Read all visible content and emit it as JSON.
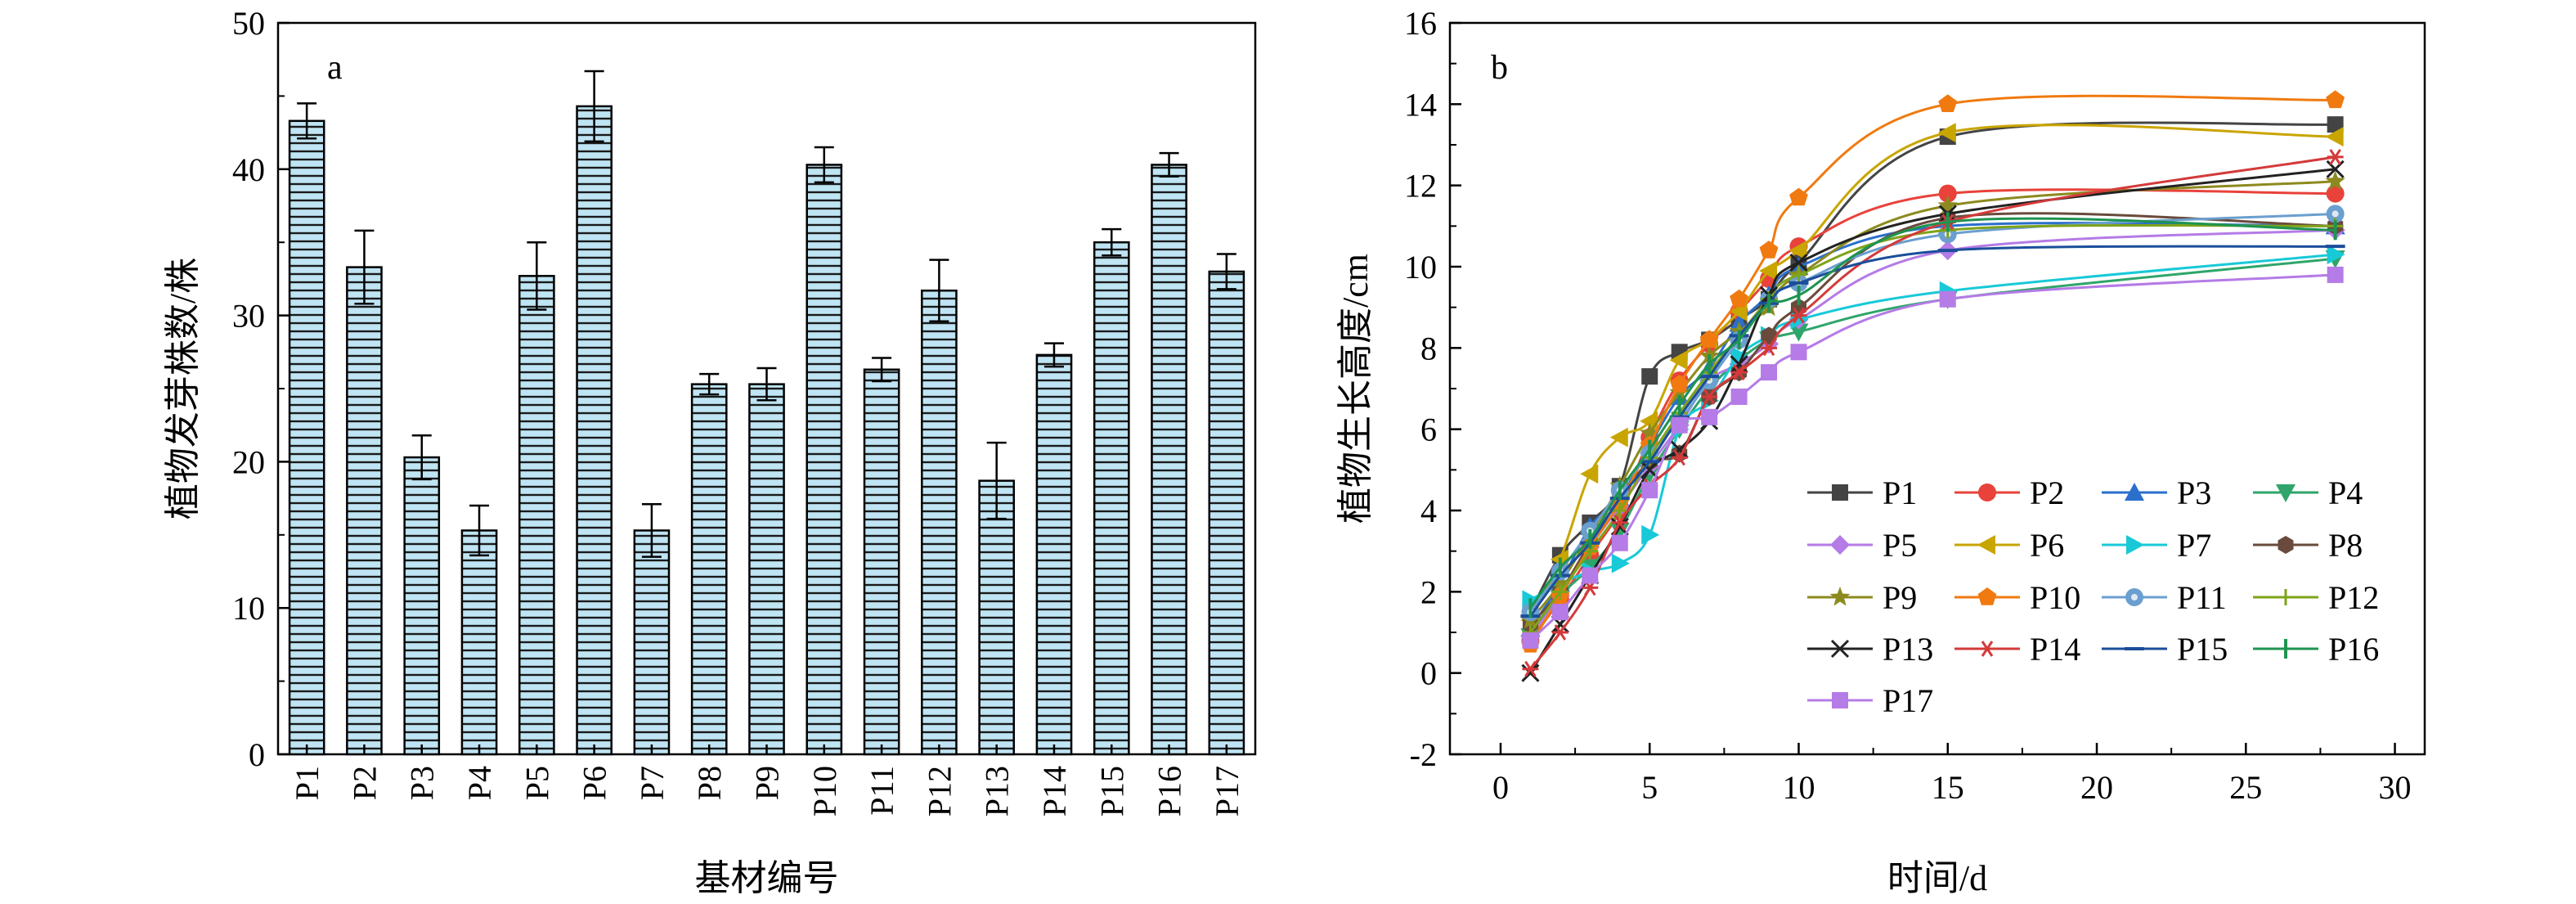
{
  "chart_data": [
    {
      "type": "bar",
      "panel_label": "a",
      "xlabel": "基材编号",
      "ylabel": "植物发芽株数/株",
      "ylim": [
        0,
        50
      ],
      "yticks": [
        0,
        10,
        20,
        30,
        40,
        50
      ],
      "bar_color": "#BFE4F3",
      "bar_hatch": "horizontal",
      "categories": [
        "P1",
        "P2",
        "P3",
        "P4",
        "P5",
        "P6",
        "P7",
        "P8",
        "P9",
        "P10",
        "P11",
        "P12",
        "P13",
        "P14",
        "P15",
        "P16",
        "P17"
      ],
      "values": [
        43.3,
        33.3,
        20.3,
        15.3,
        32.7,
        44.3,
        15.3,
        25.3,
        25.3,
        40.3,
        26.3,
        31.7,
        18.7,
        27.3,
        35.0,
        40.3,
        33.0
      ],
      "errors": [
        1.2,
        2.5,
        1.5,
        1.7,
        2.3,
        2.4,
        1.8,
        0.7,
        1.1,
        1.2,
        0.8,
        2.1,
        2.6,
        0.8,
        0.9,
        0.8,
        1.2
      ]
    },
    {
      "type": "line",
      "panel_label": "b",
      "xlabel": "时间/d",
      "ylabel": "植物生长高度/cm",
      "xlim": [
        -1.7,
        31
      ],
      "ylim": [
        -2,
        16
      ],
      "xticks": [
        0,
        5,
        10,
        15,
        20,
        25,
        30
      ],
      "yticks": [
        -2,
        0,
        2,
        4,
        6,
        8,
        10,
        12,
        14,
        16
      ],
      "legend_position": "bottom-right",
      "x": [
        1,
        2,
        3,
        4,
        5,
        6,
        7,
        8,
        9,
        10,
        15,
        28
      ],
      "series": [
        {
          "name": "P1",
          "color": "#444444",
          "marker": "square",
          "values": [
            1.5,
            2.9,
            3.7,
            4.6,
            7.3,
            7.9,
            8.2,
            8.7,
            9.2,
            10.1,
            13.2,
            13.5
          ]
        },
        {
          "name": "P2",
          "color": "#E8423B",
          "marker": "circle",
          "values": [
            0.8,
            1.8,
            2.9,
            4.0,
            5.8,
            7.2,
            8.1,
            8.9,
            9.7,
            10.5,
            11.8,
            11.8
          ]
        },
        {
          "name": "P3",
          "color": "#2A6FCC",
          "marker": "triangle-up",
          "values": [
            1.1,
            2.2,
            3.6,
            4.3,
            5.6,
            6.8,
            7.5,
            8.6,
            9.3,
            10.0,
            11.0,
            11.0
          ]
        },
        {
          "name": "P4",
          "color": "#2FA56B",
          "marker": "triangle-down",
          "values": [
            0.9,
            1.9,
            2.6,
            3.5,
            4.9,
            6.0,
            7.0,
            7.7,
            8.2,
            8.4,
            9.2,
            10.2
          ]
        },
        {
          "name": "P5",
          "color": "#B57BE6",
          "marker": "diamond",
          "values": [
            0.9,
            1.9,
            3.1,
            4.1,
            5.1,
            6.1,
            7.2,
            7.6,
            8.1,
            8.7,
            10.4,
            10.9
          ]
        },
        {
          "name": "P6",
          "color": "#C9A500",
          "marker": "triangle-left",
          "values": [
            1.3,
            2.8,
            4.9,
            5.8,
            6.2,
            7.7,
            8.2,
            8.9,
            9.9,
            10.4,
            13.3,
            13.2
          ]
        },
        {
          "name": "P7",
          "color": "#18C9D8",
          "marker": "triangle-right",
          "values": [
            1.8,
            2.2,
            2.5,
            2.7,
            3.4,
            6.0,
            6.7,
            7.8,
            8.3,
            8.7,
            9.4,
            10.3
          ]
        },
        {
          "name": "P8",
          "color": "#6A4A3C",
          "marker": "hexagon",
          "values": [
            1.2,
            2.0,
            3.2,
            4.3,
            5.2,
            5.4,
            6.8,
            7.4,
            8.3,
            9.0,
            11.2,
            11.0
          ]
        },
        {
          "name": "P9",
          "color": "#8C8A1E",
          "marker": "star",
          "values": [
            1.3,
            2.2,
            3.4,
            4.6,
            5.9,
            6.9,
            7.8,
            8.4,
            9.0,
            9.8,
            11.5,
            12.1
          ]
        },
        {
          "name": "P10",
          "color": "#F07A10",
          "marker": "pentagon",
          "values": [
            0.7,
            1.9,
            3.1,
            4.2,
            5.6,
            7.1,
            8.2,
            9.2,
            10.4,
            11.7,
            14.0,
            14.1
          ]
        },
        {
          "name": "P11",
          "color": "#6B9FCF",
          "marker": "circle-center",
          "values": [
            1.5,
            2.5,
            3.5,
            4.5,
            5.4,
            6.2,
            7.2,
            8.2,
            9.2,
            9.6,
            10.8,
            11.3
          ]
        },
        {
          "name": "P12",
          "color": "#7FA31A",
          "marker": "plus",
          "values": [
            1.0,
            2.0,
            3.0,
            4.0,
            5.3,
            6.4,
            7.4,
            8.3,
            9.2,
            9.8,
            10.9,
            11.0
          ]
        },
        {
          "name": "P13",
          "color": "#222222",
          "marker": "x",
          "values": [
            0.0,
            1.2,
            2.4,
            3.6,
            5.0,
            5.5,
            6.2,
            7.6,
            9.3,
            10.1,
            11.3,
            12.4
          ]
        },
        {
          "name": "P14",
          "color": "#D43A3A",
          "marker": "asterisk",
          "values": [
            0.1,
            1.0,
            2.1,
            3.7,
            4.6,
            5.3,
            6.8,
            7.4,
            8.0,
            8.8,
            11.1,
            12.7
          ]
        },
        {
          "name": "P15",
          "color": "#1B4E9A",
          "marker": "dash",
          "values": [
            1.4,
            2.4,
            3.2,
            4.3,
            5.2,
            6.3,
            7.3,
            8.3,
            9.1,
            9.6,
            10.4,
            10.5
          ]
        },
        {
          "name": "P16",
          "color": "#1E9450",
          "marker": "vline",
          "values": [
            1.6,
            2.6,
            3.3,
            4.5,
            5.5,
            6.6,
            7.6,
            8.2,
            9.1,
            9.3,
            11.1,
            10.9
          ]
        },
        {
          "name": "P17",
          "color": "#B57BE6",
          "marker": "square",
          "values": [
            0.8,
            1.5,
            2.4,
            3.2,
            4.5,
            6.1,
            6.3,
            6.8,
            7.4,
            7.9,
            9.2,
            9.8
          ]
        }
      ]
    }
  ]
}
